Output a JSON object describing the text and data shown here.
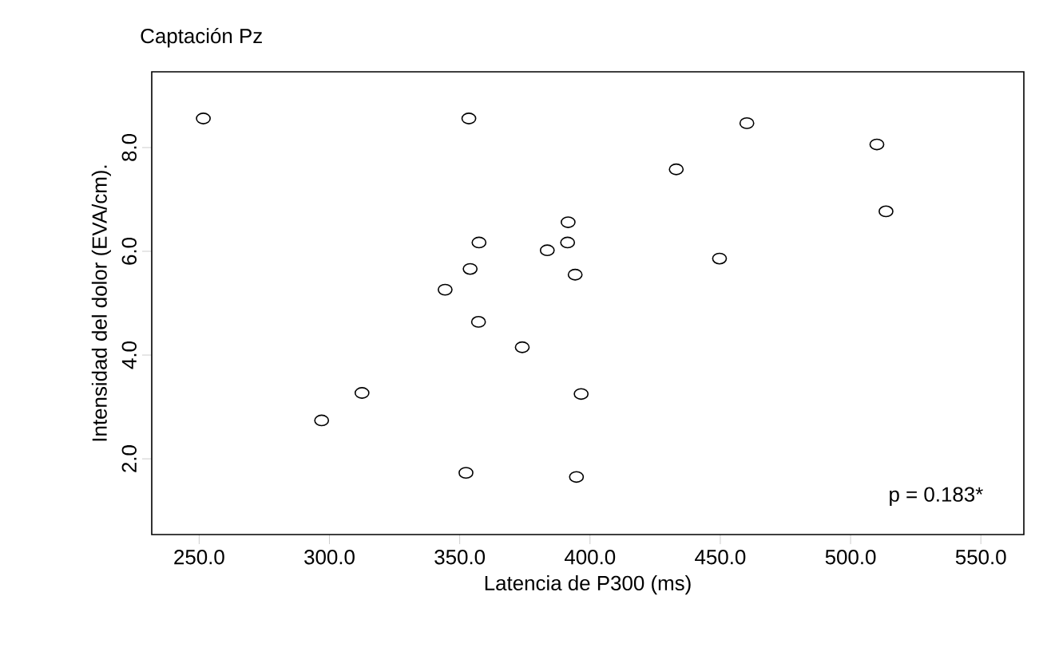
{
  "chart_data": {
    "type": "scatter",
    "title": "Captación Pz",
    "xlabel": "Latencia de P300 (ms)",
    "ylabel": "Intensidad del dolor (EVA/cm).",
    "x": [
      251.6,
      353.5,
      460.2,
      510.1,
      433.1,
      513.6,
      391.6,
      357.4,
      391.4,
      383.6,
      449.7,
      354.0,
      394.3,
      344.4,
      357.2,
      374.0,
      312.5,
      396.6,
      297.0,
      352.4,
      394.8
    ],
    "values": [
      8.56,
      8.56,
      8.47,
      8.06,
      7.58,
      6.77,
      6.56,
      6.17,
      6.17,
      6.02,
      5.86,
      5.66,
      5.55,
      5.26,
      4.64,
      4.15,
      3.27,
      3.25,
      2.74,
      1.73,
      1.65
    ],
    "color": "#000000",
    "xlim": [
      231.8,
      566.5
    ],
    "ylim": [
      0.54,
      9.46
    ],
    "xticks": [
      {
        "value": 250,
        "label": "250.0"
      },
      {
        "value": 300,
        "label": "300.0"
      },
      {
        "value": 350,
        "label": "350.0"
      },
      {
        "value": 400,
        "label": "400.0"
      },
      {
        "value": 450,
        "label": "450.0"
      },
      {
        "value": 500,
        "label": "500.0"
      },
      {
        "value": 550,
        "label": "550.0"
      }
    ],
    "yticks": [
      {
        "value": 2,
        "label": "2.0"
      },
      {
        "value": 4,
        "label": "4.0"
      },
      {
        "value": 6,
        "label": "6.0"
      },
      {
        "value": 8,
        "label": "8.0"
      }
    ],
    "annotations": [
      "p = 0.183*"
    ]
  }
}
